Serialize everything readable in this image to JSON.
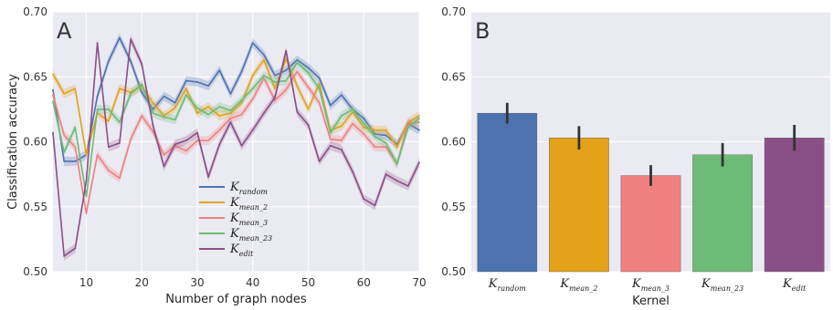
{
  "chart_data": [
    {
      "type": "line",
      "panel_label": "A",
      "xlabel": "Number of graph nodes",
      "ylabel": "Classification accuracy",
      "xlim": [
        4,
        70
      ],
      "ylim": [
        0.5,
        0.7
      ],
      "xticks": [
        "10",
        "20",
        "30",
        "40",
        "50",
        "60",
        "70"
      ],
      "yticks": [
        "0.50",
        "0.55",
        "0.60",
        "0.65",
        "0.70"
      ],
      "grid": true,
      "legend_placement": "lower-center",
      "x": [
        4,
        6,
        8,
        10,
        12,
        14,
        16,
        18,
        20,
        22,
        24,
        26,
        28,
        30,
        32,
        34,
        36,
        38,
        40,
        42,
        44,
        46,
        48,
        50,
        52,
        54,
        56,
        58,
        60,
        62,
        64,
        66,
        68,
        70
      ],
      "series": [
        {
          "name": "K",
          "name_sub": "random",
          "color": "#4c72b0",
          "values": [
            0.64,
            0.585,
            0.585,
            0.59,
            0.635,
            0.662,
            0.68,
            0.662,
            0.638,
            0.625,
            0.635,
            0.63,
            0.647,
            0.646,
            0.643,
            0.655,
            0.637,
            0.654,
            0.676,
            0.667,
            0.651,
            0.655,
            0.663,
            0.657,
            0.649,
            0.628,
            0.636,
            0.625,
            0.618,
            0.606,
            0.605,
            0.598,
            0.614,
            0.609
          ]
        },
        {
          "name": "K",
          "name_sub": "mean_2",
          "color": "#e3a21a",
          "values": [
            0.652,
            0.637,
            0.641,
            0.59,
            0.622,
            0.616,
            0.641,
            0.638,
            0.643,
            0.63,
            0.62,
            0.626,
            0.641,
            0.622,
            0.627,
            0.62,
            0.622,
            0.63,
            0.651,
            0.663,
            0.641,
            0.664,
            0.643,
            0.625,
            0.645,
            0.609,
            0.612,
            0.623,
            0.611,
            0.609,
            0.609,
            0.596,
            0.615,
            0.62
          ]
        },
        {
          "name": "K",
          "name_sub": "mean_3",
          "color": "#f08080",
          "values": [
            0.636,
            0.605,
            0.596,
            0.545,
            0.59,
            0.578,
            0.572,
            0.602,
            0.62,
            0.608,
            0.59,
            0.597,
            0.593,
            0.601,
            0.601,
            0.609,
            0.618,
            0.621,
            0.633,
            0.649,
            0.632,
            0.64,
            0.654,
            0.642,
            0.63,
            0.602,
            0.601,
            0.614,
            0.606,
            0.596,
            0.596,
            0.583,
            0.614,
            0.615
          ]
        },
        {
          "name": "K",
          "name_sub": "mean_23",
          "color": "#6dbb78",
          "values": [
            0.631,
            0.592,
            0.611,
            0.558,
            0.625,
            0.625,
            0.615,
            0.637,
            0.644,
            0.622,
            0.619,
            0.617,
            0.636,
            0.626,
            0.621,
            0.627,
            0.624,
            0.632,
            0.641,
            0.651,
            0.646,
            0.647,
            0.661,
            0.653,
            0.641,
            0.607,
            0.62,
            0.625,
            0.614,
            0.604,
            0.599,
            0.583,
            0.611,
            0.618
          ]
        },
        {
          "name": "K",
          "name_sub": "edit",
          "color": "#8a4f86",
          "values": [
            0.607,
            0.512,
            0.518,
            0.57,
            0.676,
            0.596,
            0.599,
            0.679,
            0.66,
            0.613,
            0.581,
            0.598,
            0.601,
            0.607,
            0.573,
            0.598,
            0.615,
            0.597,
            0.609,
            0.622,
            0.634,
            0.67,
            0.623,
            0.613,
            0.585,
            0.597,
            0.594,
            0.577,
            0.556,
            0.551,
            0.575,
            0.57,
            0.566,
            0.584
          ]
        }
      ]
    },
    {
      "type": "bar",
      "panel_label": "B",
      "xlabel": "Kernel",
      "ylabel": "",
      "ylim": [
        0.5,
        0.7
      ],
      "yticks": [
        "0.50",
        "0.55",
        "0.60",
        "0.65",
        "0.70"
      ],
      "grid": true,
      "categories": [
        {
          "name": "K",
          "sub": "random",
          "color": "#4c72b0"
        },
        {
          "name": "K",
          "sub": "mean_2",
          "color": "#e3a21a"
        },
        {
          "name": "K",
          "sub": "mean_3",
          "color": "#f08080"
        },
        {
          "name": "K",
          "sub": "mean_23",
          "color": "#6dbb78"
        },
        {
          "name": "K",
          "sub": "edit",
          "color": "#8a4f86"
        }
      ],
      "values": [
        0.622,
        0.603,
        0.574,
        0.59,
        0.603
      ],
      "errors": [
        0.008,
        0.009,
        0.008,
        0.009,
        0.01
      ]
    }
  ]
}
